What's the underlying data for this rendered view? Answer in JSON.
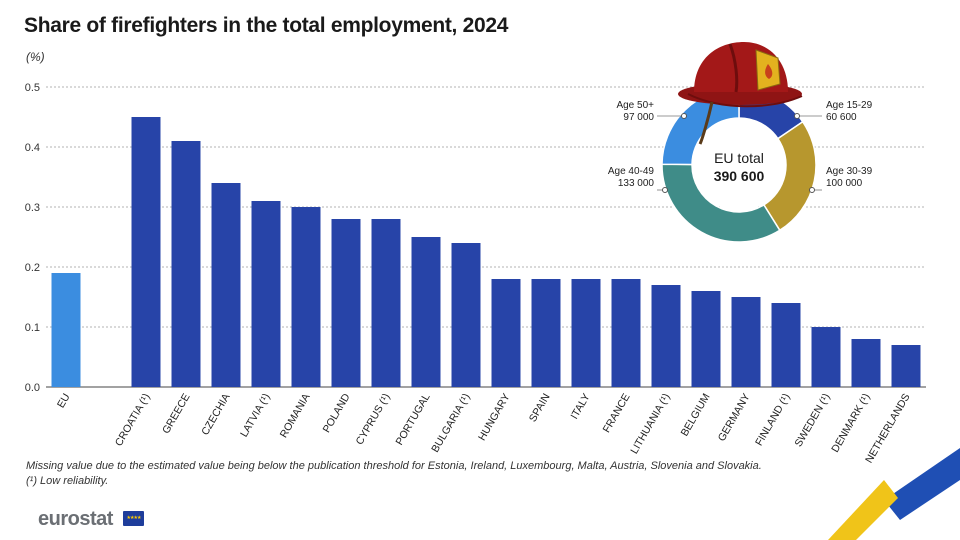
{
  "header": {
    "title": "Share of firefighters in the total employment, 2024",
    "unit": "(%)"
  },
  "chart_data": [
    {
      "type": "bar",
      "categories": [
        "EU",
        "",
        "CROATIA (¹)",
        "GREECE",
        "CZECHIA",
        "LATVIA (¹)",
        "ROMANIA",
        "POLAND",
        "CYPRUS (¹)",
        "PORTUGAL",
        "BULGARIA (¹)",
        "HUNGARY",
        "SPAIN",
        "ITALY",
        "FRANCE",
        "LITHUANIA (¹)",
        "BELGIUM",
        "GERMANY",
        "FINLAND (¹)",
        "SWEDEN (¹)",
        "DENMARK (¹)",
        "NETHERLANDS"
      ],
      "values": [
        0.19,
        null,
        0.45,
        0.41,
        0.34,
        0.31,
        0.3,
        0.28,
        0.28,
        0.25,
        0.24,
        0.18,
        0.18,
        0.18,
        0.18,
        0.17,
        0.16,
        0.15,
        0.14,
        0.1,
        0.08,
        0.07
      ],
      "ylim": [
        0,
        0.5
      ],
      "yticks": [
        "0.0",
        "0.1",
        "0.2",
        "0.3",
        "0.4",
        "0.5"
      ],
      "grid": true,
      "colors": {
        "eu": "#3b8de0",
        "country": "#2744a8"
      }
    },
    {
      "type": "pie",
      "center_label": "EU total",
      "center_value": "390 600",
      "slices": [
        {
          "label": "Age 15-29",
          "value_label": "60 600",
          "value": 60600,
          "color": "#2744a8"
        },
        {
          "label": "Age 30-39",
          "value_label": "100 000",
          "value": 100000,
          "color": "#b7972e"
        },
        {
          "label": "Age 40-49",
          "value_label": "133 000",
          "value": 133000,
          "color": "#3f8c88"
        },
        {
          "label": "Age 50+",
          "value_label": "97 000",
          "value": 97000,
          "color": "#3b8de0"
        }
      ]
    }
  ],
  "footnotes": {
    "line1": "Missing value due to the estimated value being below the publication threshold for Estonia, Ireland, Luxembourg, Malta, Austria, Slovenia and Slovakia.",
    "line2": "(¹) Low reliability."
  },
  "branding": {
    "logo": "eurostat",
    "flag_stars": "★★★★"
  },
  "icons": [
    "firefighter-helmet-icon",
    "eu-flag-icon"
  ]
}
